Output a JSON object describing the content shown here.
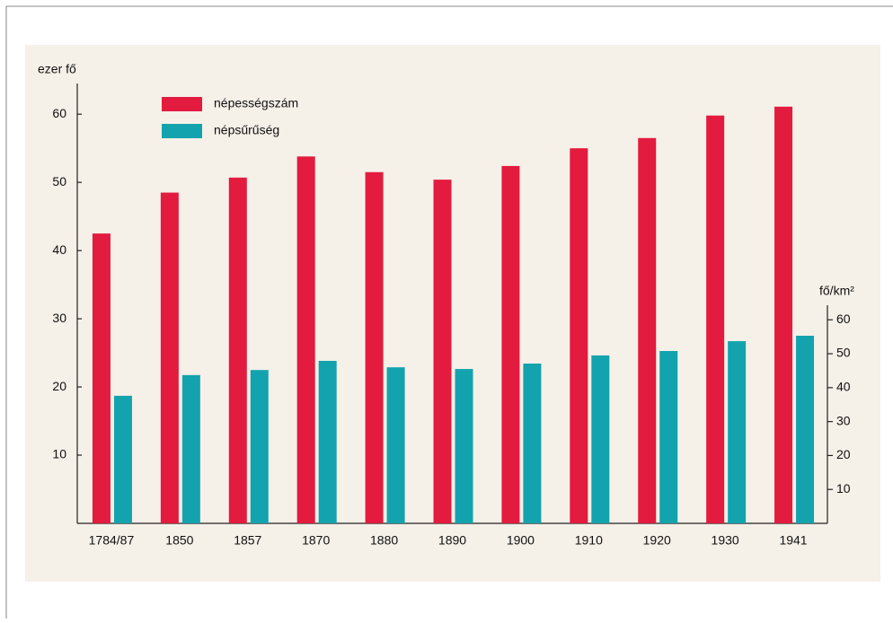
{
  "chart_data": {
    "type": "bar",
    "categories": [
      "1784/87",
      "1850",
      "1857",
      "1870",
      "1880",
      "1890",
      "1900",
      "1910",
      "1920",
      "1930",
      "1941"
    ],
    "series": [
      {
        "name": "népességszám",
        "color": "#e31b3f",
        "values": [
          42.5,
          48.5,
          50.7,
          53.8,
          51.5,
          50.4,
          52.4,
          55.0,
          56.5,
          59.8,
          61.1
        ]
      },
      {
        "name": "népsűrűség",
        "color": "#13a3ae",
        "axis": "y2",
        "values": [
          37.6,
          43.7,
          45.2,
          47.9,
          46.0,
          45.5,
          47.1,
          49.5,
          50.8,
          53.7,
          55.3
        ]
      }
    ],
    "ylabel": "ezer fő",
    "y2label": "fő/km²",
    "ylim": [
      0,
      64.5
    ],
    "yticks": [
      10,
      20,
      30,
      40,
      50,
      60
    ],
    "y2lim": [
      0,
      64.3
    ],
    "y2ticks": [
      10,
      20,
      30,
      40,
      50,
      60
    ],
    "legend": "upper left"
  }
}
